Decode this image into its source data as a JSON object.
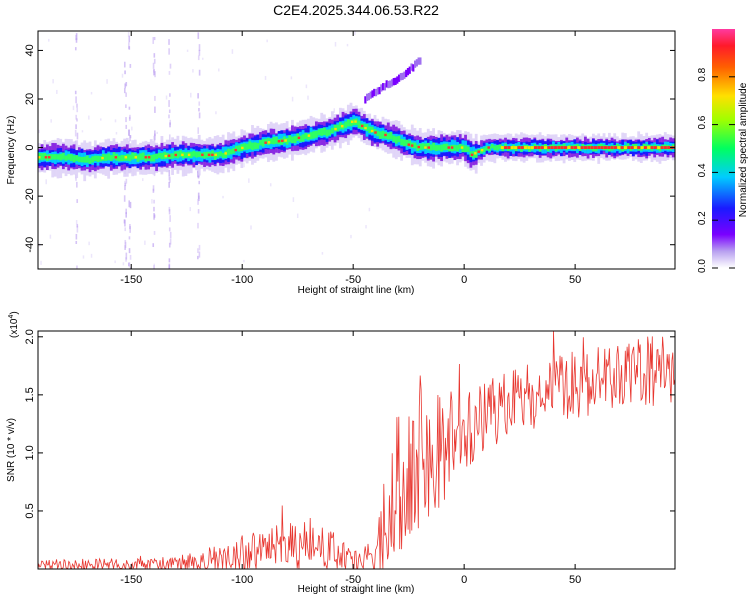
{
  "title": "C2E4.2025.344.06.53.R22",
  "chart_data": [
    {
      "type": "heatmap",
      "name": "spectrogram",
      "xlabel": "Height of straight line (km)",
      "ylabel": "Frequency (Hz)",
      "xlim": [
        -192,
        95
      ],
      "ylim": [
        -50,
        48
      ],
      "xticks": [
        -150,
        -100,
        -50,
        0,
        50
      ],
      "yticks": [
        -40,
        -20,
        0,
        20,
        40
      ],
      "colorbar": {
        "label": "Normalized spectral amplitude",
        "range": [
          0,
          1
        ],
        "ticks": [
          0.0,
          0.2,
          0.4,
          0.6,
          0.8
        ]
      },
      "ridge": {
        "x": [
          -192,
          -180,
          -170,
          -160,
          -150,
          -140,
          -130,
          -120,
          -110,
          -100,
          -90,
          -80,
          -70,
          -60,
          -55,
          -50,
          -45,
          -40,
          -35,
          -30,
          -25,
          -20,
          -10,
          0,
          3,
          10,
          20,
          40,
          60,
          80,
          95
        ],
        "freq": [
          -4,
          -4,
          -5,
          -4,
          -4,
          -4,
          -3,
          -3,
          -3,
          0,
          2,
          3,
          5,
          7,
          9,
          11,
          8,
          6,
          5,
          3,
          1,
          0,
          0,
          0,
          -3,
          0,
          0,
          0,
          0,
          0,
          0
        ]
      },
      "branch": {
        "x": [
          -45,
          -40,
          -35,
          -30,
          -25,
          -20
        ],
        "freq": [
          20,
          23,
          26,
          28,
          32,
          36
        ]
      }
    },
    {
      "type": "line",
      "name": "snr",
      "xlabel": "Height of straight line (km)",
      "ylabel": "SNR (10 * v/v)",
      "scale_label": "(x10",
      "scale_exp": "4",
      "scale_close": ")",
      "xlim": [
        -192,
        95
      ],
      "ylim": [
        0,
        2.05
      ],
      "xticks": [
        -150,
        -100,
        -50,
        0,
        50
      ],
      "yticks": [
        0.5,
        1.0,
        1.5,
        2.0
      ],
      "color": "#e8362f",
      "envelope": {
        "x": [
          -192,
          -170,
          -150,
          -130,
          -120,
          -110,
          -100,
          -90,
          -80,
          -70,
          -60,
          -55,
          -50,
          -45,
          -40,
          -38,
          -35,
          -30,
          -25,
          -20,
          -15,
          -10,
          -5,
          0,
          10,
          20,
          30,
          40,
          50,
          60,
          70,
          80,
          95
        ],
        "base": [
          0.03,
          0.03,
          0.03,
          0.04,
          0.06,
          0.08,
          0.12,
          0.15,
          0.18,
          0.2,
          0.15,
          0.1,
          0.06,
          0.05,
          0.08,
          0.2,
          0.45,
          0.75,
          0.9,
          0.95,
          1.0,
          1.05,
          1.15,
          1.2,
          1.3,
          1.4,
          1.5,
          1.55,
          1.6,
          1.62,
          1.65,
          1.68,
          1.72
        ],
        "amp": [
          0.05,
          0.06,
          0.06,
          0.07,
          0.1,
          0.13,
          0.17,
          0.2,
          0.22,
          0.25,
          0.2,
          0.15,
          0.1,
          0.1,
          0.15,
          0.3,
          0.5,
          0.6,
          0.7,
          0.75,
          0.7,
          0.55,
          0.4,
          0.35,
          0.32,
          0.3,
          0.3,
          0.3,
          0.3,
          0.3,
          0.3,
          0.32,
          0.32
        ]
      }
    }
  ]
}
